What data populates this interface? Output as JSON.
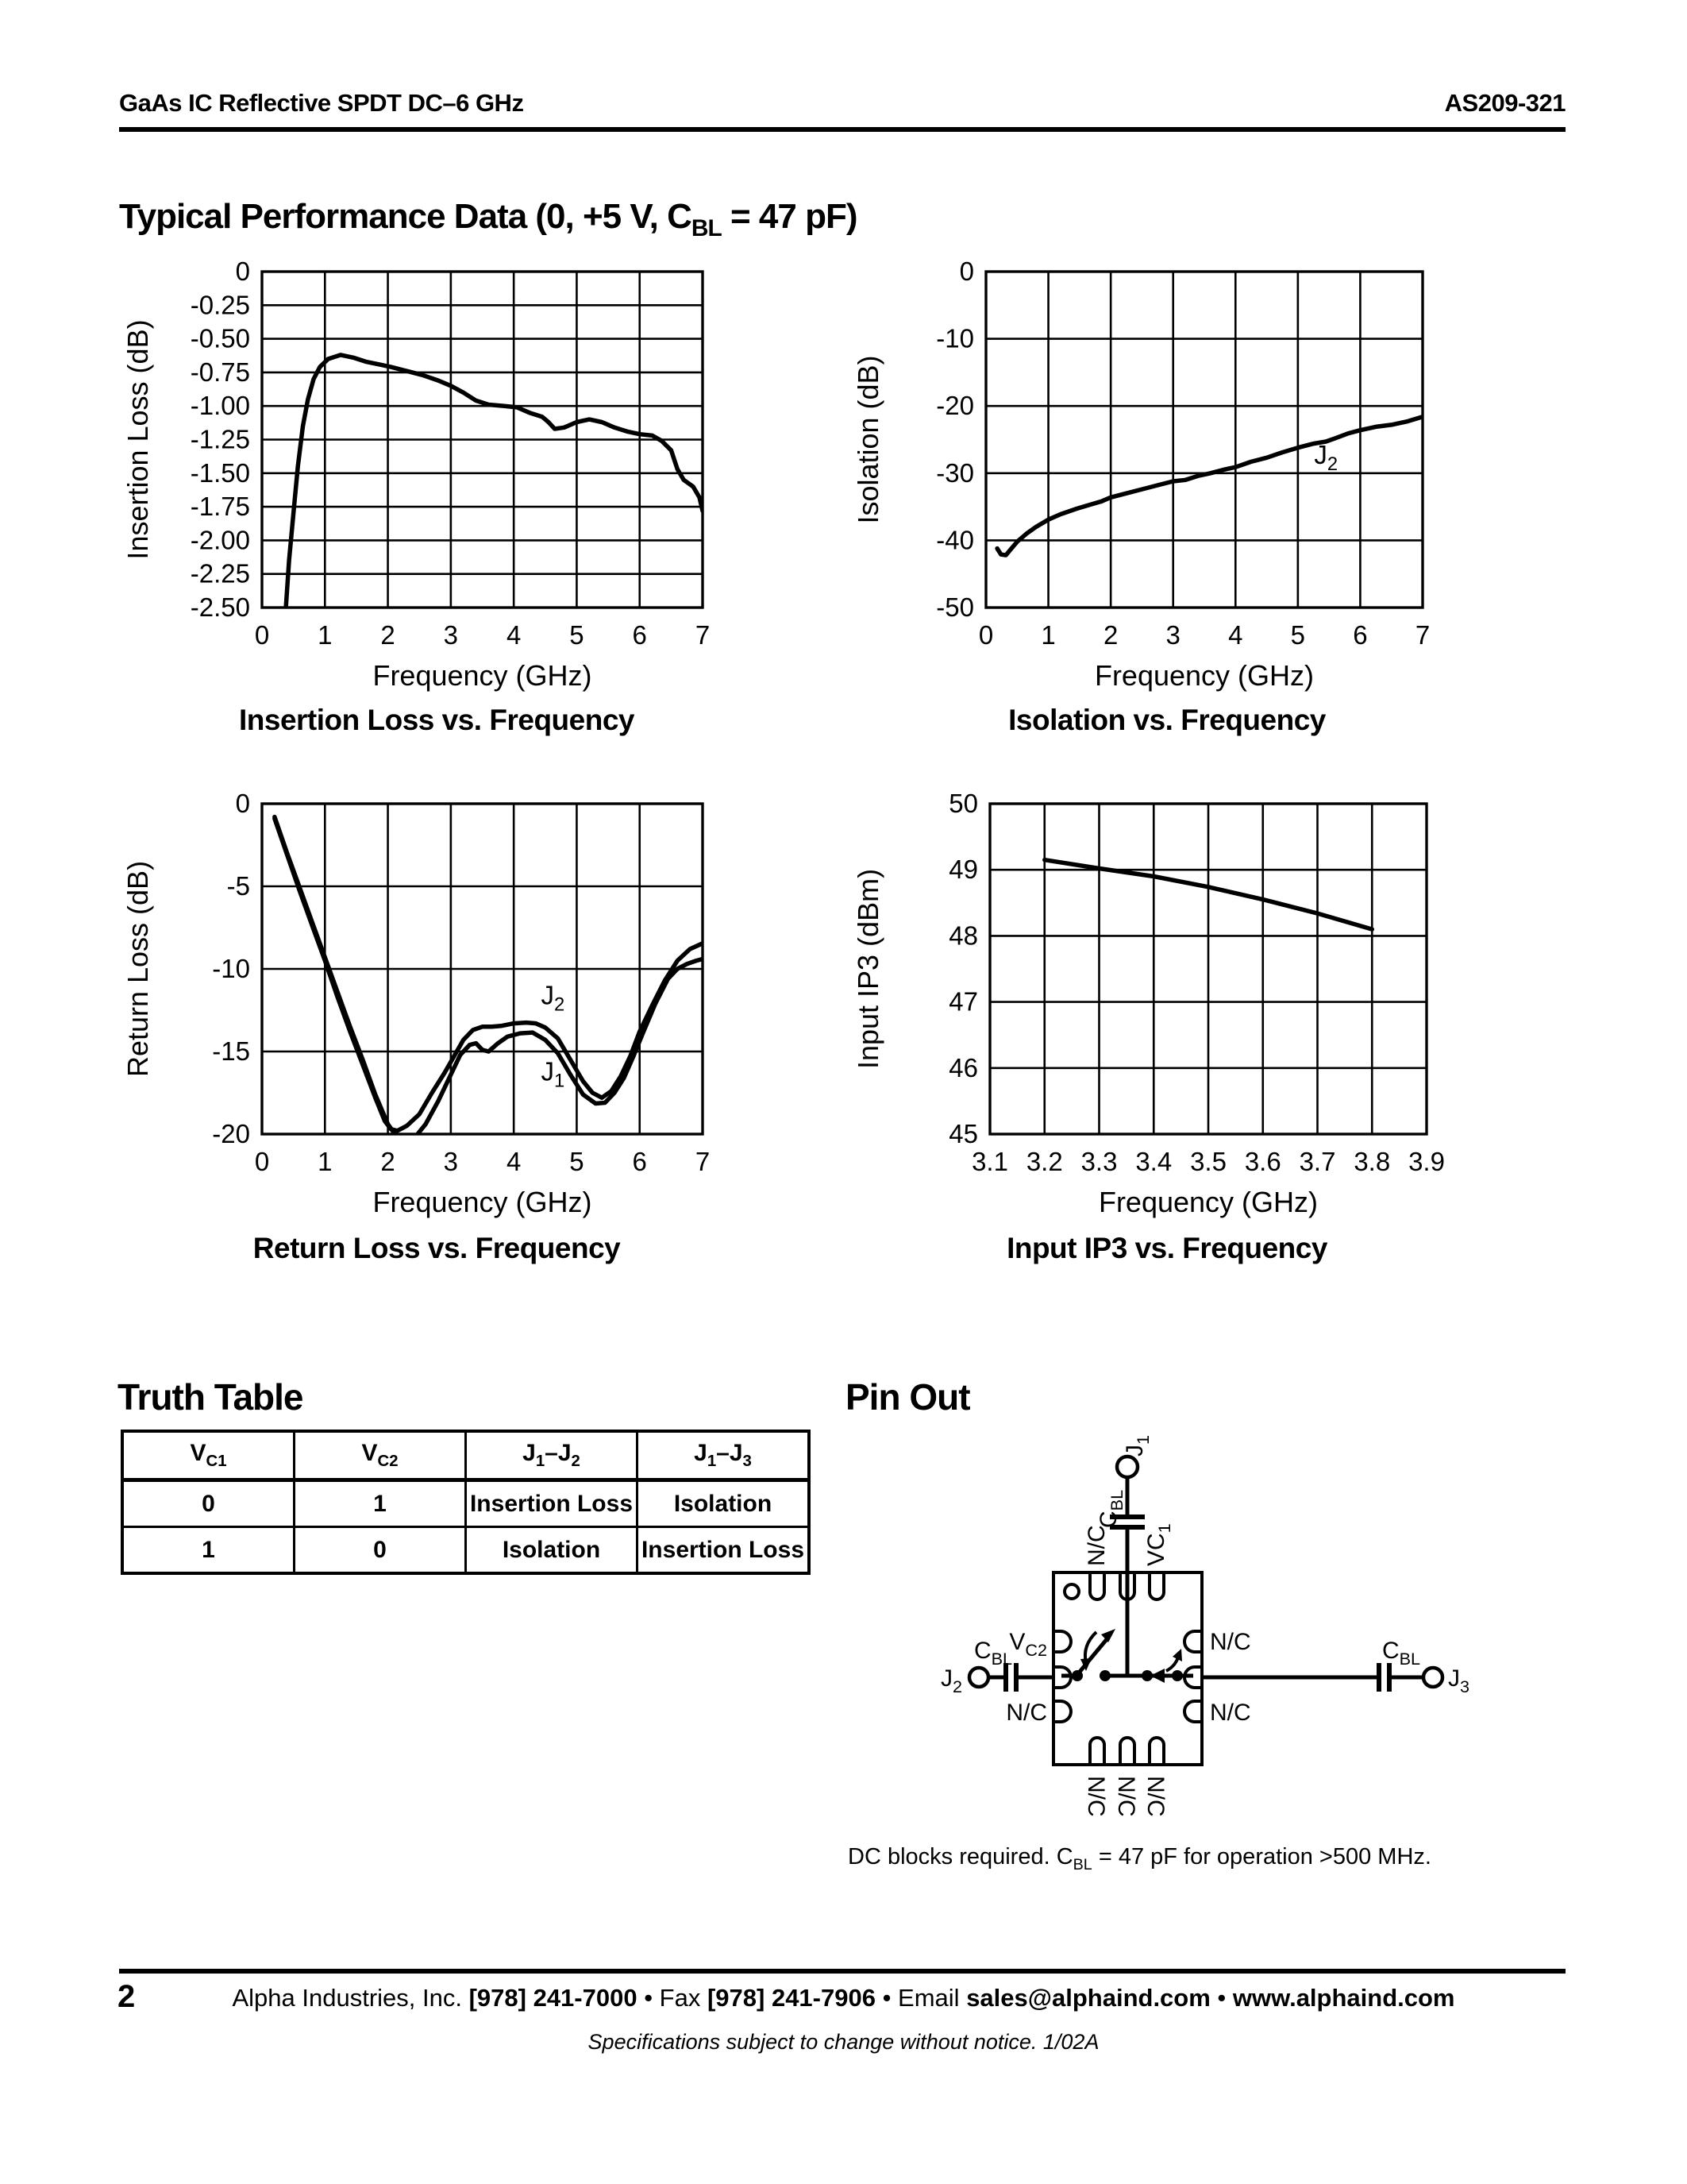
{
  "header": {
    "left": "GaAs IC Reflective SPDT DC–6 GHz",
    "right": "AS209-321"
  },
  "title": "Typical Performance Data (0, +5 V, C_{BL} = 47 pF)",
  "chart_data": [
    {
      "type": "line",
      "caption": "Insertion Loss vs. Frequency",
      "ylabel": "Insertion Loss (dB)",
      "xlabel": "Frequency (GHz)",
      "xlim": [
        0,
        7
      ],
      "ylim": [
        -2.5,
        0
      ],
      "grid": true,
      "xticks": [
        0,
        1,
        2,
        3,
        4,
        5,
        6,
        7
      ],
      "xtick_labels": [
        "0",
        "1",
        "2",
        "3",
        "4",
        "5",
        "6",
        "7"
      ],
      "yticks": [
        0,
        -0.25,
        -0.5,
        -0.75,
        -1,
        -1.25,
        -1.5,
        -1.75,
        -2,
        -2.25,
        -2.5
      ],
      "ytick_labels": [
        "0",
        "-0.25",
        "-0.50",
        "-0.75",
        "-1.00",
        "-1.25",
        "-1.50",
        "-1.75",
        "-2.00",
        "-2.25",
        "-2.50"
      ],
      "series": [
        {
          "name": "insertion-loss",
          "points": [
            [
              0.38,
              -2.5
            ],
            [
              0.43,
              -2.15
            ],
            [
              0.5,
              -1.8
            ],
            [
              0.57,
              -1.45
            ],
            [
              0.65,
              -1.15
            ],
            [
              0.73,
              -0.95
            ],
            [
              0.82,
              -0.8
            ],
            [
              0.92,
              -0.71
            ],
            [
              1.05,
              -0.65
            ],
            [
              1.25,
              -0.62
            ],
            [
              1.45,
              -0.64
            ],
            [
              1.65,
              -0.67
            ],
            [
              1.85,
              -0.69
            ],
            [
              2.05,
              -0.71
            ],
            [
              2.3,
              -0.74
            ],
            [
              2.55,
              -0.77
            ],
            [
              2.8,
              -0.81
            ],
            [
              3.0,
              -0.85
            ],
            [
              3.2,
              -0.9
            ],
            [
              3.4,
              -0.96
            ],
            [
              3.6,
              -0.99
            ],
            [
              3.85,
              -1.0
            ],
            [
              4.05,
              -1.01
            ],
            [
              4.25,
              -1.05
            ],
            [
              4.45,
              -1.08
            ],
            [
              4.55,
              -1.12
            ],
            [
              4.65,
              -1.17
            ],
            [
              4.8,
              -1.16
            ],
            [
              5.0,
              -1.12
            ],
            [
              5.2,
              -1.1
            ],
            [
              5.4,
              -1.12
            ],
            [
              5.6,
              -1.16
            ],
            [
              5.8,
              -1.19
            ],
            [
              6.0,
              -1.21
            ],
            [
              6.2,
              -1.22
            ],
            [
              6.35,
              -1.26
            ],
            [
              6.5,
              -1.33
            ],
            [
              6.6,
              -1.47
            ],
            [
              6.7,
              -1.55
            ],
            [
              6.85,
              -1.6
            ],
            [
              6.95,
              -1.68
            ],
            [
              7.0,
              -1.78
            ]
          ]
        }
      ],
      "annotations": []
    },
    {
      "type": "line",
      "caption": "Isolation vs. Frequency",
      "ylabel": "Isolation (dB)",
      "xlabel": "Frequency (GHz)",
      "xlim": [
        0,
        7
      ],
      "ylim": [
        -50,
        0
      ],
      "grid": true,
      "xticks": [
        0,
        1,
        2,
        3,
        4,
        5,
        6,
        7
      ],
      "xtick_labels": [
        "0",
        "1",
        "2",
        "3",
        "4",
        "5",
        "6",
        "7"
      ],
      "yticks": [
        0,
        -10,
        -20,
        -30,
        -40,
        -50
      ],
      "ytick_labels": [
        "0",
        "-10",
        "-20",
        "-30",
        "-40",
        "-50"
      ],
      "series": [
        {
          "name": "isolation-j2",
          "points": [
            [
              0.18,
              -41.2
            ],
            [
              0.24,
              -42.1
            ],
            [
              0.32,
              -42.2
            ],
            [
              0.4,
              -41.3
            ],
            [
              0.5,
              -40.2
            ],
            [
              0.65,
              -39
            ],
            [
              0.8,
              -38
            ],
            [
              1.0,
              -36.9
            ],
            [
              1.2,
              -36.1
            ],
            [
              1.45,
              -35.3
            ],
            [
              1.7,
              -34.6
            ],
            [
              1.85,
              -34.2
            ],
            [
              2.0,
              -33.6
            ],
            [
              2.25,
              -33
            ],
            [
              2.5,
              -32.4
            ],
            [
              2.75,
              -31.8
            ],
            [
              3.0,
              -31.2
            ],
            [
              3.2,
              -31
            ],
            [
              3.4,
              -30.4
            ],
            [
              3.6,
              -30
            ],
            [
              3.8,
              -29.5
            ],
            [
              4.0,
              -29.1
            ],
            [
              4.25,
              -28.3
            ],
            [
              4.5,
              -27.7
            ],
            [
              4.75,
              -26.9
            ],
            [
              5.0,
              -26.2
            ],
            [
              5.25,
              -25.6
            ],
            [
              5.45,
              -25.3
            ],
            [
              5.6,
              -24.8
            ],
            [
              5.8,
              -24.1
            ],
            [
              6.0,
              -23.6
            ],
            [
              6.25,
              -23.1
            ],
            [
              6.5,
              -22.8
            ],
            [
              6.75,
              -22.3
            ],
            [
              7.0,
              -21.6
            ]
          ]
        }
      ],
      "annotations": [
        {
          "label": "J_{2}",
          "x": 5.45,
          "y": -28.6
        }
      ]
    },
    {
      "type": "line",
      "caption": "Return Loss vs. Frequency",
      "ylabel": "Return Loss (dB)",
      "xlabel": "Frequency (GHz)",
      "xlim": [
        0,
        7
      ],
      "ylim": [
        -20,
        0
      ],
      "grid": true,
      "xticks": [
        0,
        1,
        2,
        3,
        4,
        5,
        6,
        7
      ],
      "xtick_labels": [
        "0",
        "1",
        "2",
        "3",
        "4",
        "5",
        "6",
        "7"
      ],
      "yticks": [
        0,
        -5,
        -10,
        -15,
        -20
      ],
      "ytick_labels": [
        "0",
        "-5",
        "-10",
        "-15",
        "-20"
      ],
      "series": [
        {
          "name": "return-loss-j2",
          "points": [
            [
              0.2,
              -0.9
            ],
            [
              0.4,
              -3.1
            ],
            [
              0.6,
              -5.3
            ],
            [
              0.8,
              -7.4
            ],
            [
              1.0,
              -9.5
            ],
            [
              1.2,
              -11.7
            ],
            [
              1.4,
              -13.8
            ],
            [
              1.6,
              -15.8
            ],
            [
              1.8,
              -17.8
            ],
            [
              1.95,
              -19.2
            ],
            [
              2.05,
              -19.7
            ],
            [
              2.15,
              -19.8
            ],
            [
              2.3,
              -19.5
            ],
            [
              2.5,
              -18.8
            ],
            [
              2.7,
              -17.5
            ],
            [
              2.9,
              -16.3
            ],
            [
              3.05,
              -15.3
            ],
            [
              3.2,
              -14.3
            ],
            [
              3.35,
              -13.7
            ],
            [
              3.5,
              -13.5
            ],
            [
              3.65,
              -13.5
            ],
            [
              3.8,
              -13.45
            ],
            [
              4.0,
              -13.3
            ],
            [
              4.2,
              -13.25
            ],
            [
              4.35,
              -13.3
            ],
            [
              4.5,
              -13.55
            ],
            [
              4.7,
              -14.2
            ],
            [
              4.9,
              -15.5
            ],
            [
              5.1,
              -16.8
            ],
            [
              5.25,
              -17.5
            ],
            [
              5.4,
              -17.8
            ],
            [
              5.55,
              -17.4
            ],
            [
              5.7,
              -16.5
            ],
            [
              5.85,
              -15.3
            ],
            [
              6.0,
              -13.8
            ],
            [
              6.2,
              -12.2
            ],
            [
              6.4,
              -10.7
            ],
            [
              6.6,
              -9.5
            ],
            [
              6.8,
              -8.8
            ],
            [
              7.0,
              -8.45
            ]
          ]
        },
        {
          "name": "return-loss-j1",
          "points": [
            [
              0.2,
              -0.8
            ],
            [
              0.4,
              -3.0
            ],
            [
              0.6,
              -5.1
            ],
            [
              0.8,
              -7.2
            ],
            [
              1.0,
              -9.3
            ],
            [
              1.2,
              -11.4
            ],
            [
              1.4,
              -13.5
            ],
            [
              1.6,
              -15.5
            ],
            [
              1.8,
              -17.6
            ],
            [
              2.0,
              -19.4
            ],
            [
              2.15,
              -20.2
            ],
            [
              2.3,
              -20.4
            ],
            [
              2.45,
              -20.1
            ],
            [
              2.6,
              -19.4
            ],
            [
              2.8,
              -18.0
            ],
            [
              3.0,
              -16.4
            ],
            [
              3.15,
              -15.2
            ],
            [
              3.3,
              -14.6
            ],
            [
              3.4,
              -14.5
            ],
            [
              3.5,
              -14.9
            ],
            [
              3.6,
              -15.0
            ],
            [
              3.75,
              -14.5
            ],
            [
              3.9,
              -14.1
            ],
            [
              4.1,
              -13.9
            ],
            [
              4.3,
              -13.85
            ],
            [
              4.5,
              -14.3
            ],
            [
              4.7,
              -15.1
            ],
            [
              4.9,
              -16.4
            ],
            [
              5.1,
              -17.6
            ],
            [
              5.3,
              -18.15
            ],
            [
              5.45,
              -18.1
            ],
            [
              5.6,
              -17.5
            ],
            [
              5.75,
              -16.6
            ],
            [
              5.9,
              -15.3
            ],
            [
              6.05,
              -13.9
            ],
            [
              6.25,
              -12.1
            ],
            [
              6.45,
              -10.6
            ],
            [
              6.6,
              -10.0
            ],
            [
              6.75,
              -9.7
            ],
            [
              6.9,
              -9.5
            ],
            [
              7.0,
              -9.4
            ]
          ]
        }
      ],
      "annotations": [
        {
          "label": "J_{2}",
          "x": 4.62,
          "y": -12.15
        },
        {
          "label": "J_{1}",
          "x": 4.62,
          "y": -16.75
        }
      ]
    },
    {
      "type": "line",
      "caption": "Input IP3 vs. Frequency",
      "ylabel": "Input IP3 (dBm)",
      "xlabel": "Frequency (GHz)",
      "xlim": [
        3.1,
        3.9
      ],
      "ylim": [
        45,
        50
      ],
      "grid": true,
      "xticks": [
        3.1,
        3.2,
        3.3,
        3.4,
        3.5,
        3.6,
        3.7,
        3.8,
        3.9
      ],
      "xtick_labels": [
        "3.1",
        "3.2",
        "3.3",
        "3.4",
        "3.5",
        "3.6",
        "3.7",
        "3.8",
        "3.9"
      ],
      "yticks": [
        50,
        49,
        48,
        47,
        46,
        45
      ],
      "ytick_labels": [
        "50",
        "49",
        "48",
        "47",
        "46",
        "45"
      ],
      "series": [
        {
          "name": "input-ip3",
          "points": [
            [
              3.2,
              49.15
            ],
            [
              3.3,
              49.02
            ],
            [
              3.4,
              48.9
            ],
            [
              3.5,
              48.74
            ],
            [
              3.6,
              48.55
            ],
            [
              3.7,
              48.34
            ],
            [
              3.8,
              48.1
            ]
          ]
        }
      ],
      "annotations": []
    }
  ],
  "truth_table": {
    "heading": "Truth Table",
    "headers": [
      "V_{C1}",
      "V_{C2}",
      "J_{1}–J_{2}",
      "J_{1}–J_{3}"
    ],
    "rows": [
      [
        "0",
        "1",
        "Insertion Loss",
        "Isolation"
      ],
      [
        "1",
        "0",
        "Isolation",
        "Insertion Loss"
      ]
    ]
  },
  "pinout": {
    "heading": "Pin Out",
    "labels": {
      "j1": "J_{1}",
      "j2": "J_{2}",
      "j3": "J_{3}",
      "cbl": "C_{BL}",
      "vc1": "VC_{1}",
      "vc2": "V_{C2}",
      "nc": "N/C"
    },
    "note": "DC blocks required. C_{BL} = 47 pF for operation >500 MHz."
  },
  "footer": {
    "page": "2",
    "center": [
      {
        "t": "Alpha Industries, Inc. "
      },
      {
        "t": "[978] 241-7000",
        "b": true
      },
      {
        "t": " • Fax "
      },
      {
        "t": "[978] 241-7906",
        "b": true
      },
      {
        "t": " • Email "
      },
      {
        "t": "sales@alphaind.com",
        "b": true
      },
      {
        "t": " • "
      },
      {
        "t": "www.alphaind.com",
        "b": true
      }
    ],
    "note": "Specifications subject to change without notice.  1/02A"
  }
}
